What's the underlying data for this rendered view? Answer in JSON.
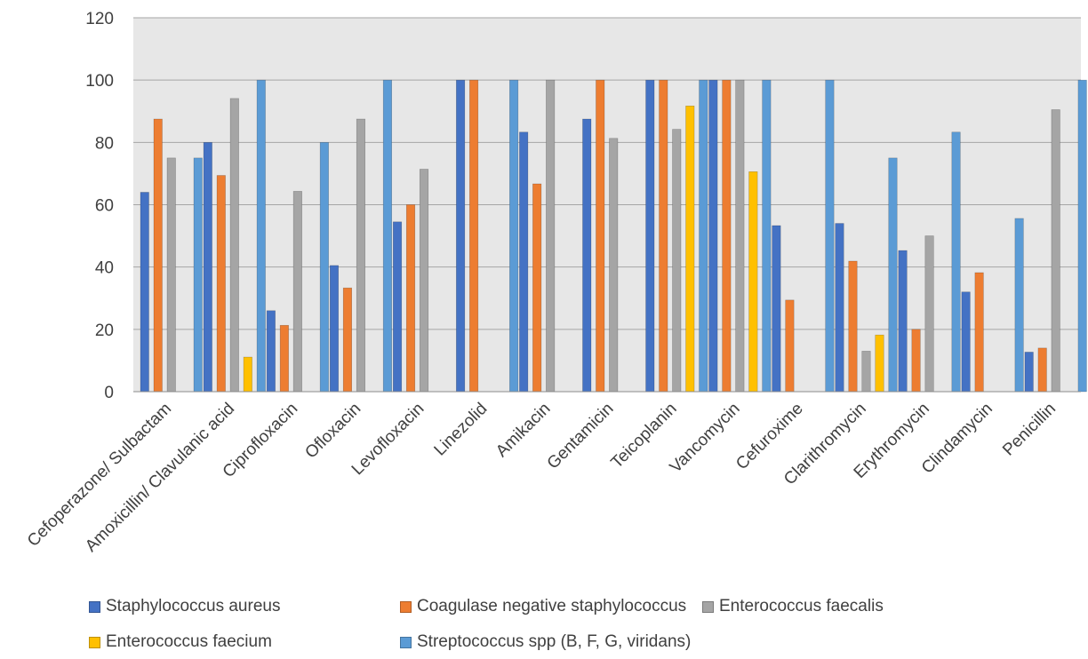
{
  "chart_data": {
    "type": "bar",
    "ylim": [
      0,
      120
    ],
    "yticks": [
      0,
      20,
      40,
      60,
      80,
      100,
      120
    ],
    "grid": true,
    "legend_position": "bottom",
    "categories": [
      "Cefoperazone/ Sulbactam",
      "Amoxicillin/ Clavulanic acid",
      "Ciprofloxacin",
      "Ofloxacin",
      "Levofloxacin",
      "Linezolid",
      "Amikacin",
      "Gentamicin",
      "Teicoplanin",
      "Vancomycin",
      "Cefuroxime",
      "Clarithromycin",
      "Erythromycin",
      "Clindamycin",
      "Penicillin"
    ],
    "series": [
      {
        "name": "Staphylococcus aureus",
        "color": "#4472c4",
        "values": [
          64,
          80,
          26,
          40.5,
          54.5,
          100,
          83.3,
          87.5,
          100,
          100,
          53.3,
          54,
          45.3,
          32,
          12.7
        ]
      },
      {
        "name": "Coagulase negative staphylococcus",
        "color": "#ed7d31",
        "values": [
          87.5,
          69.4,
          21.3,
          33.3,
          60,
          100,
          66.7,
          100,
          100,
          100,
          29.4,
          41.9,
          20,
          38.2,
          14
        ]
      },
      {
        "name": "Enterococcus faecalis",
        "color": "#a5a5a5",
        "values": [
          75,
          94.1,
          64.3,
          87.5,
          71.4,
          null,
          100,
          81.3,
          84.2,
          100,
          null,
          13,
          50,
          null,
          90.5
        ]
      },
      {
        "name": "Enterococcus faecium",
        "color": "#ffc000",
        "values": [
          null,
          11.1,
          null,
          null,
          null,
          null,
          null,
          null,
          91.7,
          70.6,
          null,
          18.2,
          null,
          null,
          null
        ]
      },
      {
        "name": "Streptococcus spp (B, F, G, viridans)",
        "color": "#5b9bd5",
        "values": [
          75,
          100,
          80,
          100,
          null,
          100,
          null,
          null,
          100,
          100,
          100,
          75,
          83.3,
          55.6,
          100
        ]
      }
    ]
  }
}
